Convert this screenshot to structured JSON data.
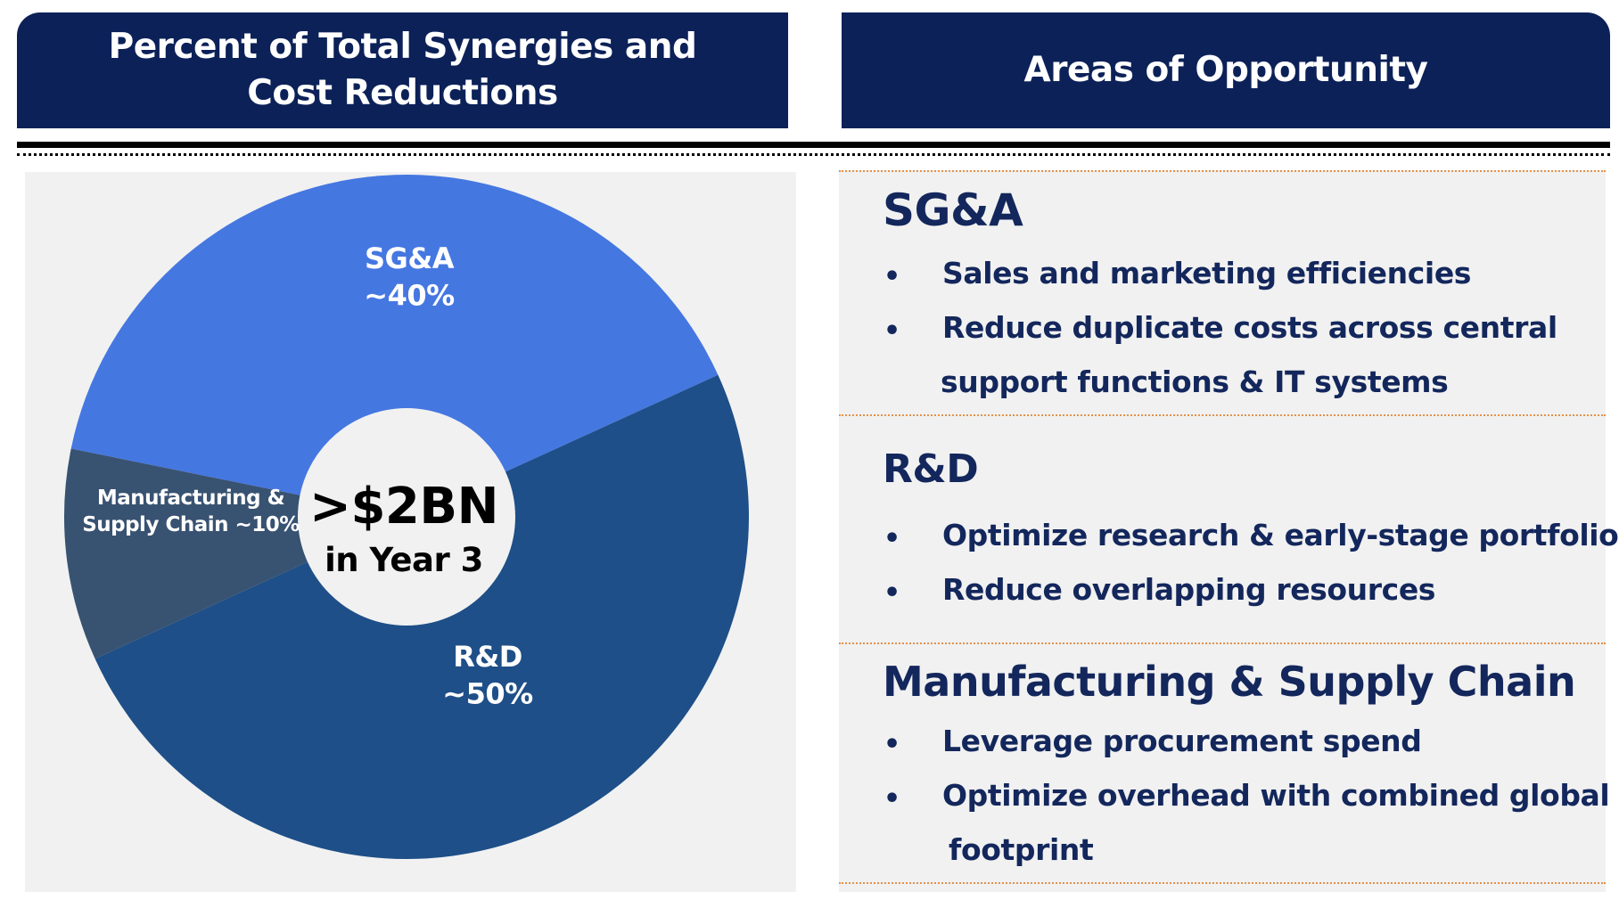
{
  "header": {
    "left_line1": "Percent of Total Synergies and",
    "left_line2": "Cost Reductions",
    "right_title": "Areas of Opportunity"
  },
  "chart_data": {
    "type": "pie",
    "center_label_line1": ">$2BN",
    "center_label_line2": "in Year 3",
    "slices": [
      {
        "name": "SG&A",
        "label_line1": "SG&A",
        "label_line2": "~40%",
        "value": 40,
        "color": "#4577e1"
      },
      {
        "name": "R&D",
        "label_line1": "R&D",
        "label_line2": "~50%",
        "value": 50,
        "color": "#1e4f88"
      },
      {
        "name": "Manufacturing & Supply Chain",
        "label_line1": "Manufacturing &",
        "label_line2": "Supply Chain ~10%",
        "value": 10,
        "color": "#385271"
      }
    ]
  },
  "opportunities": {
    "sections": [
      {
        "title": "SG&A",
        "bullets": [
          {
            "lines": [
              "Sales and marketing efficiencies"
            ]
          },
          {
            "lines": [
              "Reduce duplicate costs across central",
              "support functions & IT systems"
            ]
          }
        ]
      },
      {
        "title": "R&D",
        "bullets": [
          {
            "lines": [
              "Optimize research & early-stage portfolio"
            ]
          },
          {
            "lines": [
              "Reduce overlapping resources"
            ]
          }
        ]
      },
      {
        "title": "Manufacturing & Supply Chain",
        "bullets": [
          {
            "lines": [
              "Leverage procurement spend"
            ]
          },
          {
            "lines": [
              "Optimize overhead with combined global",
              "footprint"
            ]
          }
        ]
      }
    ],
    "bullet_char": "•",
    "text_color": "#13275c",
    "separator_color": "#e2914b"
  },
  "theme": {
    "header_bg": "#0c2158",
    "panel_bg": "#f1f1f1"
  }
}
